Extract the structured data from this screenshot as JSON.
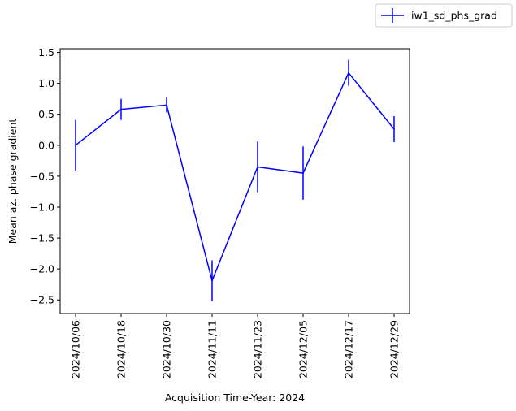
{
  "chart_data": {
    "type": "line",
    "title": "",
    "xlabel": "Acquisition Time-Year: 2024",
    "ylabel": "Mean az. phase gradient",
    "x": [
      "2024/10/06",
      "2024/10/18",
      "2024/10/30",
      "2024/11/11",
      "2024/11/23",
      "2024/12/05",
      "2024/12/17",
      "2024/12/29"
    ],
    "series": [
      {
        "name": "iw1_sd_phs_grad",
        "color": "#0000ff",
        "values": [
          0.0,
          0.58,
          0.65,
          -2.19,
          -0.35,
          -0.45,
          1.17,
          0.26
        ],
        "errors": [
          0.41,
          0.17,
          0.12,
          0.33,
          0.41,
          0.43,
          0.21,
          0.21
        ]
      }
    ],
    "ylim": [
      -2.72,
      1.56
    ],
    "yticks": [
      -2.5,
      -2.0,
      -1.5,
      -1.0,
      -0.5,
      0.0,
      0.5,
      1.0,
      1.5
    ],
    "ytick_labels": [
      "−2.5",
      "−2.0",
      "−1.5",
      "−1.0",
      "−0.5",
      "0.0",
      "0.5",
      "1.0",
      "1.5"
    ],
    "grid": false,
    "legend_position": "upper-right"
  }
}
